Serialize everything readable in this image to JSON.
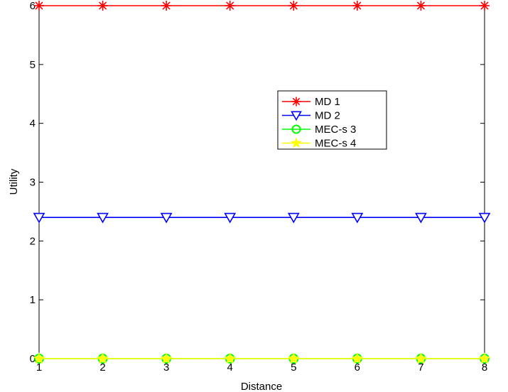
{
  "chart_data": {
    "type": "line",
    "title": "",
    "xlabel": "Distance",
    "ylabel": "Utility",
    "x": [
      1,
      2,
      3,
      4,
      5,
      6,
      7,
      8
    ],
    "xlim": [
      1,
      8
    ],
    "ylim": [
      0,
      6
    ],
    "xticks": [
      "1",
      "2",
      "3",
      "4",
      "5",
      "6",
      "7",
      "8"
    ],
    "yticks": [
      "0",
      "1",
      "2",
      "3",
      "4",
      "5",
      "6"
    ],
    "grid": false,
    "legend_position": "upper-right-inside",
    "series": [
      {
        "name": "MD 1",
        "values": [
          6,
          6,
          6,
          6,
          6,
          6,
          6,
          6
        ],
        "color": "#ff0000",
        "marker": "asterisk"
      },
      {
        "name": "MD 2",
        "values": [
          2.4,
          2.4,
          2.4,
          2.4,
          2.4,
          2.4,
          2.4,
          2.4
        ],
        "color": "#0000ff",
        "marker": "triangle-down"
      },
      {
        "name": "MEC-s 3",
        "values": [
          0,
          0,
          0,
          0,
          0,
          0,
          0,
          0
        ],
        "color": "#00ff00",
        "marker": "circle"
      },
      {
        "name": "MEC-s 4",
        "values": [
          0,
          0,
          0,
          0,
          0,
          0,
          0,
          0
        ],
        "color": "#ffff00",
        "marker": "star"
      }
    ]
  }
}
